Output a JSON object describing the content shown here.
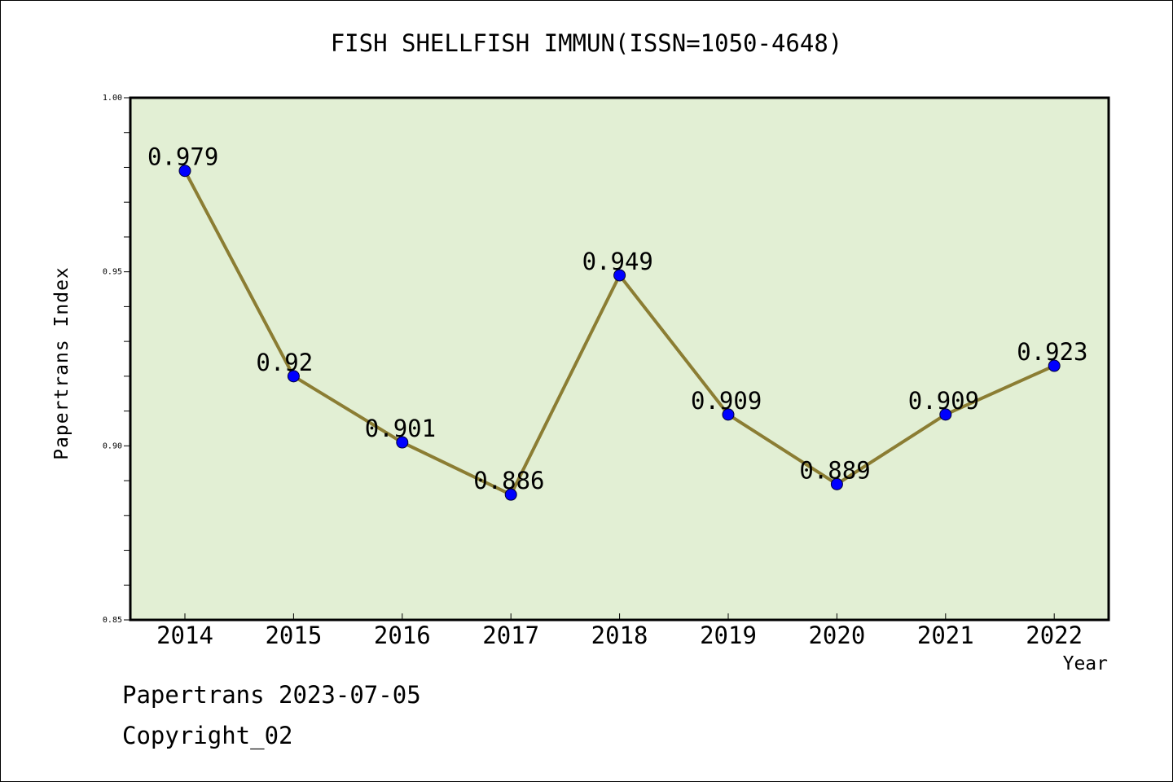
{
  "title": "FISH SHELLFISH IMMUN(ISSN=1050-4648)",
  "footer": {
    "line1": "Papertrans 2023-07-05",
    "line2": "Copyright_02"
  },
  "chart_data": {
    "type": "line",
    "title": "FISH SHELLFISH IMMUN(ISSN=1050-4648)",
    "xlabel": "Year",
    "ylabel": "Papertrans Index",
    "categories": [
      "2014",
      "2015",
      "2016",
      "2017",
      "2018",
      "2019",
      "2020",
      "2021",
      "2022"
    ],
    "series": [
      {
        "values": [
          0.979,
          0.92,
          0.901,
          0.886,
          0.949,
          0.909,
          0.889,
          0.909,
          0.923
        ],
        "labels": [
          "0.979",
          "0.92",
          "0.901",
          "0.886",
          "0.949",
          "0.909",
          "0.889",
          "0.909",
          "0.923"
        ],
        "line_color": "#8b7d33",
        "marker_color": "#0000ff"
      }
    ],
    "ylim": [
      0.85,
      1.0
    ],
    "yticks": [
      "0.85",
      "0.90",
      "0.95",
      "1.00"
    ],
    "plot_background": "#e2efd4",
    "grid": false,
    "legend": "none"
  }
}
